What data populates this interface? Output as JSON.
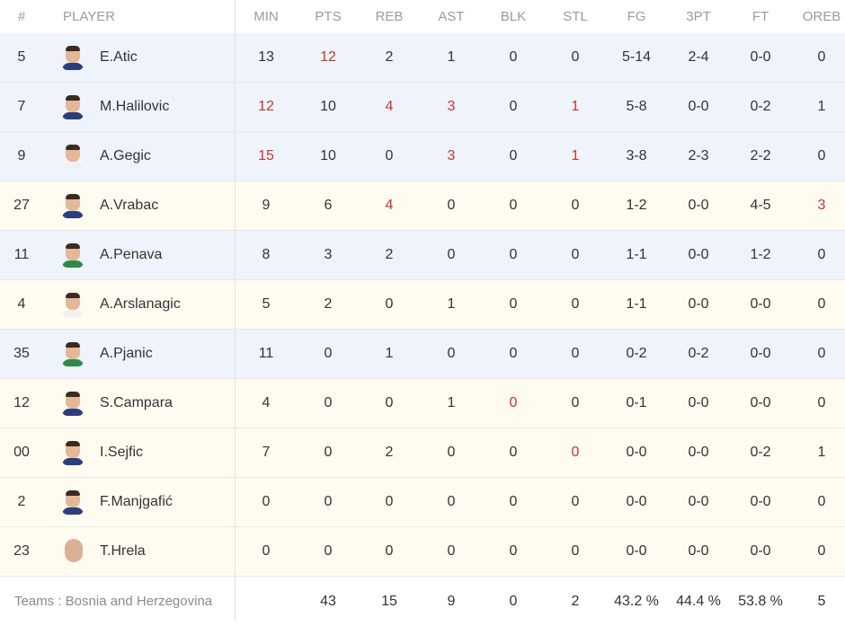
{
  "header": [
    "#",
    "PLAYER",
    "MIN",
    "PTS",
    "REB",
    "AST",
    "BLK",
    "STL",
    "FG",
    "3PT",
    "FT",
    "OREB"
  ],
  "players": [
    {
      "num": "5",
      "name": "E.Atic",
      "min": "13",
      "pts": "12",
      "reb": "2",
      "ast": "1",
      "blk": "0",
      "stl": "0",
      "fg": "5-14",
      "tpt": "2-4",
      "ft": "0-0",
      "oreb": "0",
      "highlight": [
        "pts"
      ],
      "avatar": "player-photo"
    },
    {
      "num": "7",
      "name": "M.Halilovic",
      "min": "12",
      "pts": "10",
      "reb": "4",
      "ast": "3",
      "blk": "0",
      "stl": "1",
      "fg": "5-8",
      "tpt": "0-0",
      "ft": "0-2",
      "oreb": "1",
      "highlight": [
        "min",
        "reb",
        "ast",
        "stl"
      ],
      "avatar": "player-photo"
    },
    {
      "num": "9",
      "name": "A.Gegic",
      "min": "15",
      "pts": "10",
      "reb": "0",
      "ast": "3",
      "blk": "0",
      "stl": "1",
      "fg": "3-8",
      "tpt": "2-3",
      "ft": "2-2",
      "oreb": "0",
      "highlight": [
        "min",
        "ast",
        "stl"
      ],
      "avatar": "player-photo"
    },
    {
      "num": "27",
      "name": "A.Vrabac",
      "min": "9",
      "pts": "6",
      "reb": "4",
      "ast": "0",
      "blk": "0",
      "stl": "0",
      "fg": "1-2",
      "tpt": "0-0",
      "ft": "4-5",
      "oreb": "3",
      "highlight": [
        "reb",
        "oreb"
      ],
      "avatar": "player-photo"
    },
    {
      "num": "11",
      "name": "A.Penava",
      "min": "8",
      "pts": "3",
      "reb": "2",
      "ast": "0",
      "blk": "0",
      "stl": "0",
      "fg": "1-1",
      "tpt": "0-0",
      "ft": "1-2",
      "oreb": "0",
      "highlight": [],
      "avatar": "player-photo"
    },
    {
      "num": "4",
      "name": "A.Arslanagic",
      "min": "5",
      "pts": "2",
      "reb": "0",
      "ast": "1",
      "blk": "0",
      "stl": "0",
      "fg": "1-1",
      "tpt": "0-0",
      "ft": "0-0",
      "oreb": "0",
      "highlight": [],
      "avatar": "player-photo"
    },
    {
      "num": "35",
      "name": "A.Pjanic",
      "min": "11",
      "pts": "0",
      "reb": "1",
      "ast": "0",
      "blk": "0",
      "stl": "0",
      "fg": "0-2",
      "tpt": "0-2",
      "ft": "0-0",
      "oreb": "0",
      "highlight": [],
      "avatar": "player-photo"
    },
    {
      "num": "12",
      "name": "S.Campara",
      "min": "4",
      "pts": "0",
      "reb": "0",
      "ast": "1",
      "blk": "0",
      "stl": "0",
      "fg": "0-1",
      "tpt": "0-0",
      "ft": "0-0",
      "oreb": "0",
      "highlight": [
        "blk"
      ],
      "avatar": "player-photo"
    },
    {
      "num": "00",
      "name": "I.Sejfic",
      "min": "7",
      "pts": "0",
      "reb": "2",
      "ast": "0",
      "blk": "0",
      "stl": "0",
      "fg": "0-0",
      "tpt": "0-0",
      "ft": "0-2",
      "oreb": "1",
      "highlight": [
        "stl"
      ],
      "avatar": "player-photo"
    },
    {
      "num": "2",
      "name": "F.Manjgafić",
      "min": "0",
      "pts": "0",
      "reb": "0",
      "ast": "0",
      "blk": "0",
      "stl": "0",
      "fg": "0-0",
      "tpt": "0-0",
      "ft": "0-0",
      "oreb": "0",
      "highlight": [],
      "avatar": "player-photo"
    },
    {
      "num": "23",
      "name": "T.Hrela",
      "min": "0",
      "pts": "0",
      "reb": "0",
      "ast": "0",
      "blk": "0",
      "stl": "0",
      "fg": "0-0",
      "tpt": "0-0",
      "ft": "0-0",
      "oreb": "0",
      "highlight": [],
      "avatar": "player-photo"
    }
  ],
  "totals": {
    "label": "Teams : Bosnia and Herzegovina",
    "min": "",
    "pts": "43",
    "reb": "15",
    "ast": "9",
    "blk": "0",
    "stl": "2",
    "fg": "43.2 %",
    "tpt": "44.4 %",
    "ft": "53.8 %",
    "oreb": "5"
  },
  "colors": {
    "highlight": "#c0392b",
    "row_blue": "#eef3fc",
    "row_cream": "#fefcf1",
    "header_text": "#9b9b9b"
  }
}
